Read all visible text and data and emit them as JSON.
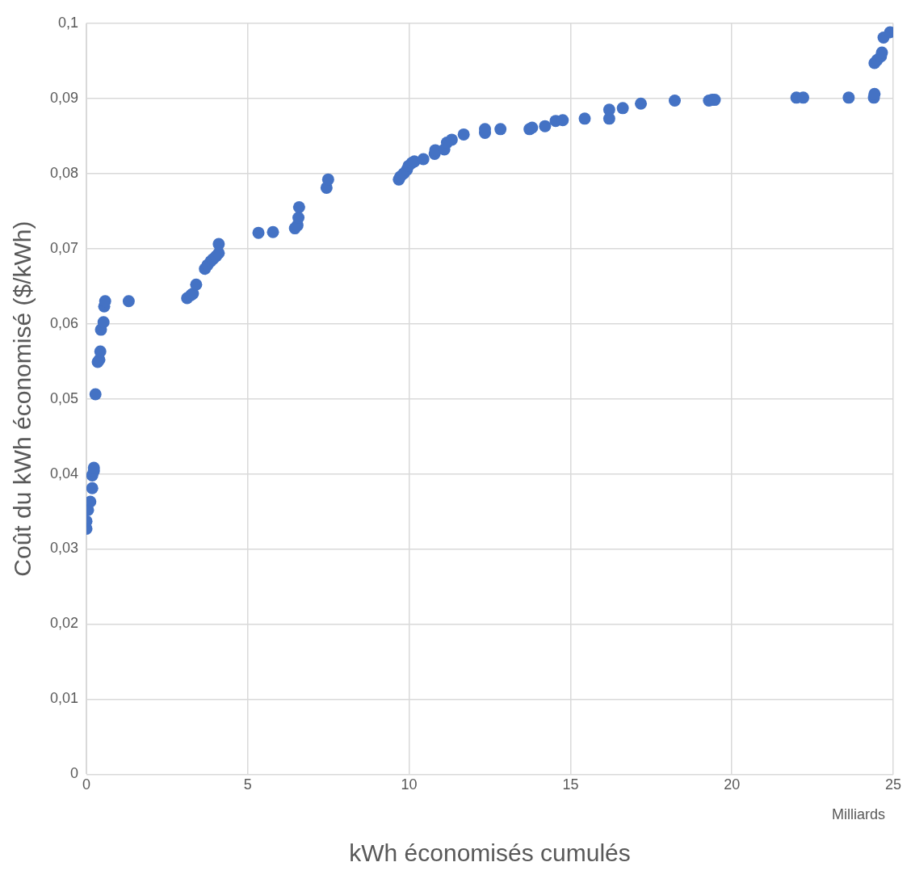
{
  "chart_data": {
    "type": "scatter",
    "xlabel": "kWh économisés cumulés",
    "ylabel": "Coût du kWh économisé ($/kWh)",
    "annotations": [
      "Milliards"
    ],
    "series": [
      {
        "color": "#4472c4",
        "x": [
          0.0,
          0.0,
          0.05,
          0.12,
          0.18,
          0.18,
          0.23,
          0.23,
          0.28,
          0.35,
          0.4,
          0.43,
          0.45,
          0.53,
          0.55,
          0.58,
          1.31,
          3.12,
          3.24,
          3.3,
          3.4,
          3.67,
          3.75,
          3.85,
          3.92,
          4.02,
          4.1,
          4.1,
          5.33,
          5.78,
          6.46,
          6.54,
          6.57,
          6.59,
          7.44,
          7.49,
          9.68,
          9.73,
          9.83,
          9.93,
          9.98,
          10.08,
          10.16,
          10.44,
          10.79,
          10.81,
          11.09,
          11.17,
          11.32,
          11.69,
          12.35,
          12.35,
          12.83,
          13.73,
          13.81,
          14.21,
          14.54,
          14.76,
          15.44,
          16.2,
          16.2,
          16.62,
          17.18,
          18.23,
          19.29,
          19.39,
          19.47,
          22.0,
          22.21,
          23.62,
          24.4,
          24.42,
          24.42,
          24.5,
          24.62,
          24.65,
          24.7,
          24.9
        ],
        "values": [
          0.0327,
          0.0337,
          0.0352,
          0.0363,
          0.0381,
          0.0398,
          0.0404,
          0.0408,
          0.0506,
          0.0549,
          0.0552,
          0.0563,
          0.0592,
          0.0602,
          0.0623,
          0.063,
          0.063,
          0.0634,
          0.0638,
          0.064,
          0.0652,
          0.0673,
          0.0678,
          0.0683,
          0.0686,
          0.069,
          0.0694,
          0.0706,
          0.0721,
          0.0722,
          0.0727,
          0.0731,
          0.0741,
          0.0755,
          0.0781,
          0.0792,
          0.0792,
          0.0796,
          0.08,
          0.0805,
          0.081,
          0.0814,
          0.0816,
          0.0819,
          0.0826,
          0.0831,
          0.0832,
          0.0841,
          0.0845,
          0.0852,
          0.0854,
          0.0859,
          0.0859,
          0.0859,
          0.0861,
          0.0863,
          0.087,
          0.0871,
          0.0873,
          0.0873,
          0.0885,
          0.0887,
          0.0893,
          0.0897,
          0.0897,
          0.0898,
          0.0898,
          0.0901,
          0.0901,
          0.0901,
          0.0901,
          0.0906,
          0.0947,
          0.0951,
          0.0956,
          0.0961,
          0.0981,
          0.0988
        ]
      }
    ],
    "xlim": [
      0,
      25
    ],
    "xticks": [
      0,
      5,
      10,
      15,
      20,
      25
    ],
    "ylim": [
      0,
      0.1
    ],
    "yticks": [
      {
        "value": 0,
        "label": "0"
      },
      {
        "value": 0.01,
        "label": "0,01"
      },
      {
        "value": 0.02,
        "label": "0,02"
      },
      {
        "value": 0.03,
        "label": "0,03"
      },
      {
        "value": 0.04,
        "label": "0,04"
      },
      {
        "value": 0.05,
        "label": "0,05"
      },
      {
        "value": 0.06,
        "label": "0,06"
      },
      {
        "value": 0.07,
        "label": "0,07"
      },
      {
        "value": 0.08,
        "label": "0,08"
      },
      {
        "value": 0.09,
        "label": "0,09"
      },
      {
        "value": 0.1,
        "label": "0,1"
      }
    ],
    "grid": true,
    "legend": false,
    "marker": "circle"
  }
}
